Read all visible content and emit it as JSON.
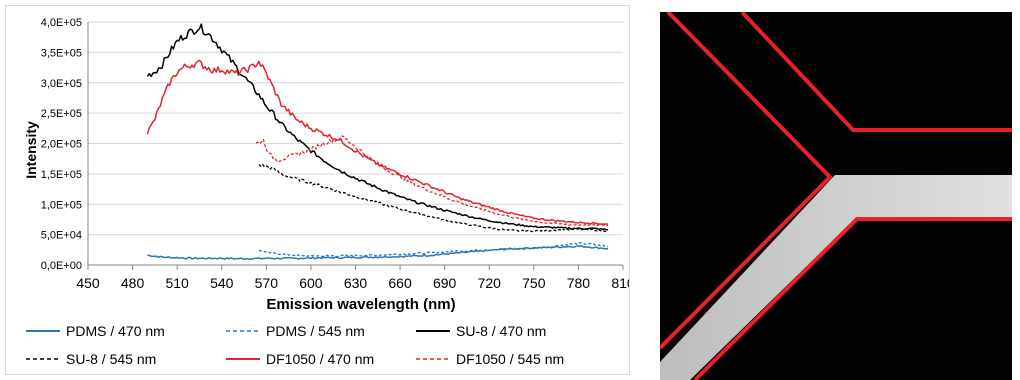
{
  "chart_data": {
    "type": "line",
    "title": "",
    "xlabel": "Emission wavelength (nm)",
    "ylabel": "Intensity",
    "xlim": [
      450,
      810
    ],
    "ylim": [
      0,
      400000
    ],
    "x_ticks": [
      "450",
      "480",
      "510",
      "540",
      "570",
      "600",
      "630",
      "660",
      "690",
      "720",
      "750",
      "780",
      "810"
    ],
    "y_ticks": [
      "0,0E+00",
      "5,0E+04",
      "1,0E+05",
      "1,5E+05",
      "2,0E+05",
      "2,5E+05",
      "3,0E+05",
      "3,5E+05",
      "4,0E+05"
    ],
    "grid": true,
    "legend_position": "bottom",
    "series": [
      {
        "name": "PDMS / 470 nm",
        "color": "#2e75b6",
        "dash": "solid",
        "x": [
          490,
          500,
          510,
          520,
          530,
          540,
          550,
          560,
          570,
          580,
          590,
          600,
          610,
          620,
          630,
          640,
          650,
          660,
          670,
          680,
          690,
          700,
          710,
          720,
          730,
          740,
          750,
          760,
          770,
          780,
          790,
          800
        ],
        "y": [
          16000,
          13000,
          12000,
          11000,
          11000,
          11000,
          10500,
          10500,
          11000,
          11000,
          11000,
          11500,
          12000,
          12000,
          12500,
          13000,
          13500,
          14000,
          15000,
          16000,
          18000,
          20000,
          22000,
          24000,
          26000,
          27000,
          28000,
          29000,
          30000,
          31000,
          29000,
          27000
        ]
      },
      {
        "name": "PDMS / 545 nm",
        "color": "#2e75b6",
        "dash": "dashed",
        "x": [
          565,
          570,
          580,
          590,
          600,
          610,
          620,
          630,
          640,
          650,
          660,
          670,
          680,
          690,
          700,
          710,
          720,
          730,
          740,
          750,
          760,
          770,
          780,
          790,
          800
        ],
        "y": [
          24000,
          21000,
          18000,
          16000,
          15000,
          15000,
          15000,
          15500,
          16000,
          17000,
          18000,
          19000,
          20000,
          22000,
          23000,
          24000,
          25000,
          26000,
          27000,
          28000,
          30000,
          33000,
          36000,
          34000,
          30000
        ]
      },
      {
        "name": "SU-8 / 470 nm",
        "color": "#000000",
        "dash": "solid",
        "x": [
          490,
          495,
          500,
          505,
          510,
          515,
          520,
          525,
          530,
          535,
          540,
          545,
          550,
          555,
          560,
          565,
          570,
          575,
          580,
          590,
          600,
          610,
          620,
          630,
          640,
          650,
          660,
          670,
          680,
          690,
          700,
          710,
          720,
          730,
          740,
          750,
          760,
          770,
          780,
          790,
          800
        ],
        "y": [
          312000,
          318000,
          330000,
          350000,
          368000,
          378000,
          385000,
          392000,
          383000,
          370000,
          355000,
          340000,
          325000,
          310000,
          295000,
          280000,
          262000,
          248000,
          232000,
          208000,
          188000,
          170000,
          155000,
          143000,
          132000,
          122000,
          112000,
          104000,
          97000,
          90000,
          84000,
          78000,
          73000,
          69000,
          66000,
          63000,
          62000,
          61000,
          60000,
          60000,
          58000
        ]
      },
      {
        "name": "SU-8 / 545 nm",
        "color": "#000000",
        "dash": "dashed",
        "x": [
          565,
          570,
          575,
          580,
          590,
          600,
          610,
          620,
          630,
          640,
          650,
          660,
          670,
          680,
          690,
          700,
          710,
          720,
          730,
          740,
          750,
          760,
          770,
          780,
          790,
          800
        ],
        "y": [
          165000,
          162000,
          158000,
          150000,
          142000,
          135000,
          128000,
          120000,
          113000,
          106000,
          99000,
          92000,
          86000,
          80000,
          74000,
          69000,
          65000,
          61000,
          58000,
          56000,
          56000,
          57000,
          58000,
          59000,
          58000,
          56000
        ]
      },
      {
        "name": "DF1050 / 470 nm",
        "color": "#e3242b",
        "dash": "solid",
        "x": [
          490,
          495,
          500,
          505,
          510,
          515,
          520,
          525,
          530,
          535,
          540,
          545,
          550,
          555,
          560,
          565,
          570,
          575,
          580,
          590,
          600,
          610,
          620,
          630,
          640,
          650,
          660,
          670,
          680,
          690,
          700,
          710,
          720,
          730,
          740,
          750,
          760,
          770,
          780,
          790,
          800
        ],
        "y": [
          218000,
          240000,
          272000,
          300000,
          318000,
          326000,
          330000,
          332000,
          325000,
          320000,
          322000,
          318000,
          315000,
          320000,
          325000,
          335000,
          315000,
          290000,
          265000,
          240000,
          225000,
          215000,
          205000,
          188000,
          172000,
          160000,
          150000,
          140000,
          130000,
          120000,
          110000,
          102000,
          95000,
          88000,
          82000,
          77000,
          74000,
          72000,
          70000,
          69000,
          67000
        ]
      },
      {
        "name": "DF1050 / 545 nm",
        "color": "#e3242b",
        "dash": "dashed",
        "x": [
          563,
          568,
          572,
          578,
          585,
          592,
          600,
          608,
          615,
          622,
          630,
          640,
          650,
          660,
          670,
          680,
          690,
          700,
          710,
          720,
          730,
          740,
          750,
          760,
          770,
          780,
          790,
          800
        ],
        "y": [
          200000,
          205000,
          182000,
          172000,
          178000,
          183000,
          190000,
          200000,
          205000,
          210000,
          195000,
          175000,
          158000,
          145000,
          133000,
          122000,
          112000,
          103000,
          95000,
          88000,
          82000,
          76000,
          72000,
          69000,
          67000,
          66000,
          66000,
          65000
        ]
      }
    ]
  },
  "micrograph": {
    "background": "#030303",
    "channel_color": "#d9d9d9",
    "wall_color": "#e8202a"
  }
}
